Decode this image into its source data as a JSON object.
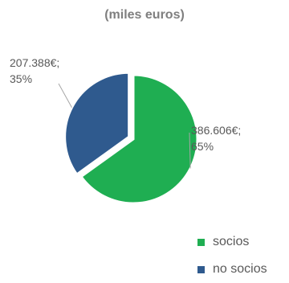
{
  "chart_data": {
    "type": "pie",
    "title": "(miles euros)",
    "slices": [
      {
        "name": "socios",
        "value": 386606,
        "percent": 65,
        "label_value": "386.606€;",
        "label_percent": "65%",
        "color": "#1fae52"
      },
      {
        "name": "no socios",
        "value": 207388,
        "percent": 35,
        "label_value": "207.388€;",
        "label_percent": "35%",
        "color": "#2f5a8e"
      }
    ],
    "legend": {
      "placement": "bottom-right",
      "entries": [
        "socios",
        "no socios"
      ]
    }
  }
}
